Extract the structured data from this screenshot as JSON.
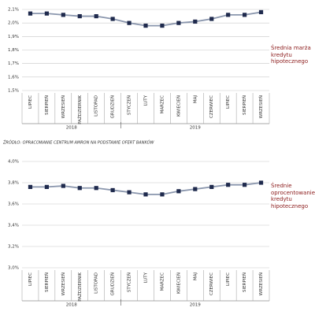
{
  "chart_data": [
    {
      "type": "line",
      "categories": [
        "LIPIEC",
        "SIERPIEŃ",
        "WRZESIEŃ",
        "PAŹDZIERNIK",
        "LISTOPAD",
        "GRUDZIEŃ",
        "STYCZEŃ",
        "LUTY",
        "MARZEC",
        "KWIECIEŃ",
        "MAJ",
        "CZERWIEC",
        "LIPIEC",
        "SIERPIEŃ",
        "WRZESIEŃ"
      ],
      "years": [
        "2018",
        "2019"
      ],
      "series": [
        {
          "name": "Średnia marża kredytu hipotecznego",
          "color": "#8a96ad",
          "marker_color": "#1f2a4d",
          "values": [
            2.07,
            2.07,
            2.06,
            2.05,
            2.05,
            2.03,
            2.0,
            1.98,
            1.98,
            2.0,
            2.01,
            2.03,
            2.06,
            2.06,
            2.08
          ]
        }
      ],
      "ylim": [
        1.5,
        2.1
      ],
      "yticks": [
        {
          "value": 1.5,
          "label": "1,5%"
        },
        {
          "value": 1.6,
          "label": "1,6%"
        },
        {
          "value": 1.7,
          "label": "1,7%"
        },
        {
          "value": 1.8,
          "label": "1,8%"
        },
        {
          "value": 1.9,
          "label": "1,9%"
        },
        {
          "value": 2.0,
          "label": "2,0%"
        },
        {
          "value": 2.1,
          "label": "2,1%"
        }
      ],
      "grid": true
    },
    {
      "type": "line",
      "categories": [
        "LIPIEC",
        "SIERPIEŃ",
        "WRZESIEŃ",
        "PAŹDZIERNIK",
        "LISTOPAD",
        "GRUDZIEŃ",
        "STYCZEŃ",
        "LUTY",
        "MARZEC",
        "KWIECIEŃ",
        "MAJ",
        "CZERWIEC",
        "LIPIEC",
        "SIERPIEŃ",
        "WRZESIEŃ"
      ],
      "years": [
        "2018",
        "2019"
      ],
      "series": [
        {
          "name": "Średnie oprocentowanie kredytu hipotecznego",
          "color": "#8a96ad",
          "marker_color": "#1f2a4d",
          "values": [
            3.76,
            3.76,
            3.77,
            3.75,
            3.75,
            3.73,
            3.71,
            3.69,
            3.69,
            3.72,
            3.74,
            3.76,
            3.78,
            3.78,
            3.8
          ]
        }
      ],
      "ylim": [
        3.0,
        4.0
      ],
      "yticks": [
        {
          "value": 3.0,
          "label": "3,0%"
        },
        {
          "value": 3.2,
          "label": "3,2%"
        },
        {
          "value": 3.4,
          "label": "3,4%"
        },
        {
          "value": 3.6,
          "label": "3,6%"
        },
        {
          "value": 3.8,
          "label": "3,8%"
        },
        {
          "value": 4.0,
          "label": "4,0%"
        }
      ],
      "grid": true
    }
  ],
  "source": "ŹRÓDŁO: OPRACOWANIE CENTRUM AMRON NA PODSTAWIE OFERT BANKÓW"
}
